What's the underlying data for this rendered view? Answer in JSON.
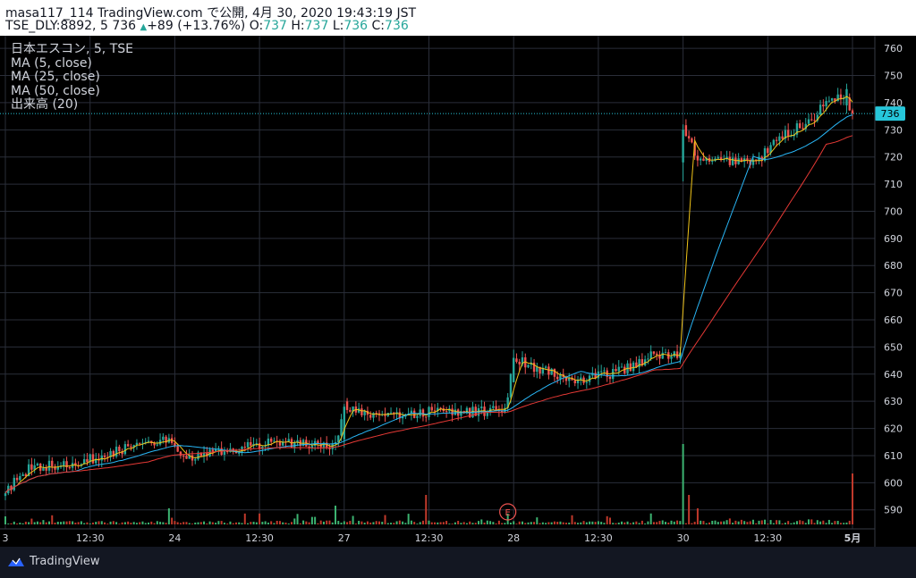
{
  "header": {
    "line1": "masa117_114 TradingView.com で公開, 4月 30, 2020 19:43:19 JST",
    "symbol": "TSE_DLY:8892, 5",
    "price": "736",
    "arrow": "▲",
    "change": "+89 (+13.76%)",
    "o_label": "O:",
    "o_val": "737",
    "h_label": "H:",
    "h_val": "737",
    "l_label": "L:",
    "l_val": "736",
    "c_label": "C:",
    "c_val": "736"
  },
  "legend": {
    "main": "日本エスコン, 5, TSE",
    "ma5": "MA (5, close)",
    "ma25": "MA (25, close)",
    "ma50": "MA (50, close)",
    "volume": "出来高 (20)"
  },
  "footer": {
    "brand": "TradingView",
    "logo_icon": "tradingview-logo-icon"
  },
  "chart_data": {
    "type": "candlestick",
    "y_ticks": [
      590,
      600,
      610,
      620,
      630,
      640,
      650,
      660,
      670,
      680,
      690,
      700,
      710,
      720,
      730,
      740,
      750,
      760
    ],
    "ylim": [
      583,
      764
    ],
    "x_ticks": [
      {
        "label": "3",
        "bar": 0
      },
      {
        "label": "12:30",
        "bar": 29
      },
      {
        "label": "24",
        "bar": 58
      },
      {
        "label": "12:30",
        "bar": 87
      },
      {
        "label": "27",
        "bar": 116
      },
      {
        "label": "12:30",
        "bar": 145
      },
      {
        "label": "28",
        "bar": 174
      },
      {
        "label": "12:30",
        "bar": 203
      },
      {
        "label": "30",
        "bar": 232
      },
      {
        "label": "12:30",
        "bar": 261
      },
      {
        "label": "5月",
        "bar": 290
      }
    ],
    "n_bars": 291,
    "last_price": 736,
    "last_price_label": "736",
    "earnings_marker": {
      "label": "E",
      "bar": 172
    },
    "price_anchors": [
      [
        0,
        597
      ],
      [
        8,
        605
      ],
      [
        20,
        607
      ],
      [
        35,
        610
      ],
      [
        45,
        615
      ],
      [
        55,
        616
      ],
      [
        61,
        608
      ],
      [
        70,
        611
      ],
      [
        85,
        614
      ],
      [
        100,
        615
      ],
      [
        113,
        614
      ],
      [
        116,
        628
      ],
      [
        125,
        624
      ],
      [
        145,
        626
      ],
      [
        160,
        626
      ],
      [
        171,
        627
      ],
      [
        174,
        646
      ],
      [
        185,
        641
      ],
      [
        195,
        637
      ],
      [
        210,
        641
      ],
      [
        222,
        647
      ],
      [
        231,
        647
      ],
      [
        232,
        730
      ],
      [
        238,
        718
      ],
      [
        252,
        719
      ],
      [
        257,
        718
      ],
      [
        265,
        727
      ],
      [
        275,
        733
      ],
      [
        283,
        742
      ],
      [
        287,
        743
      ],
      [
        290,
        736
      ]
    ],
    "volume_anchors": [
      [
        0,
        1.5
      ],
      [
        28,
        1.5
      ],
      [
        55,
        1.5
      ],
      [
        115,
        1.8
      ],
      [
        170,
        1.7
      ],
      [
        190,
        1.3
      ],
      [
        230,
        1.9
      ],
      [
        262,
        2.1
      ],
      [
        280,
        2.3
      ],
      [
        290,
        2.2
      ]
    ],
    "volume_spikes": [
      [
        0,
        6
      ],
      [
        56,
        12
      ],
      [
        113,
        14
      ],
      [
        144,
        22
      ],
      [
        172,
        8
      ],
      [
        232,
        60
      ],
      [
        234,
        22
      ],
      [
        237,
        12
      ],
      [
        290,
        38
      ],
      [
        291,
        15
      ]
    ],
    "volume_max": 70,
    "ma_periods": [
      5,
      25,
      50
    ],
    "colors": {
      "up": "#26a69a",
      "down": "#ef5350",
      "vol_up": "#3cb371",
      "vol_down": "#c0392b",
      "ma5": "#f0c419",
      "ma25": "#29b6f6",
      "ma50": "#e53935",
      "grid": "#2a2e39",
      "axis_text": "#d1d4dc",
      "price_line": "#26c6da",
      "label_bg": "#26c6da"
    }
  }
}
